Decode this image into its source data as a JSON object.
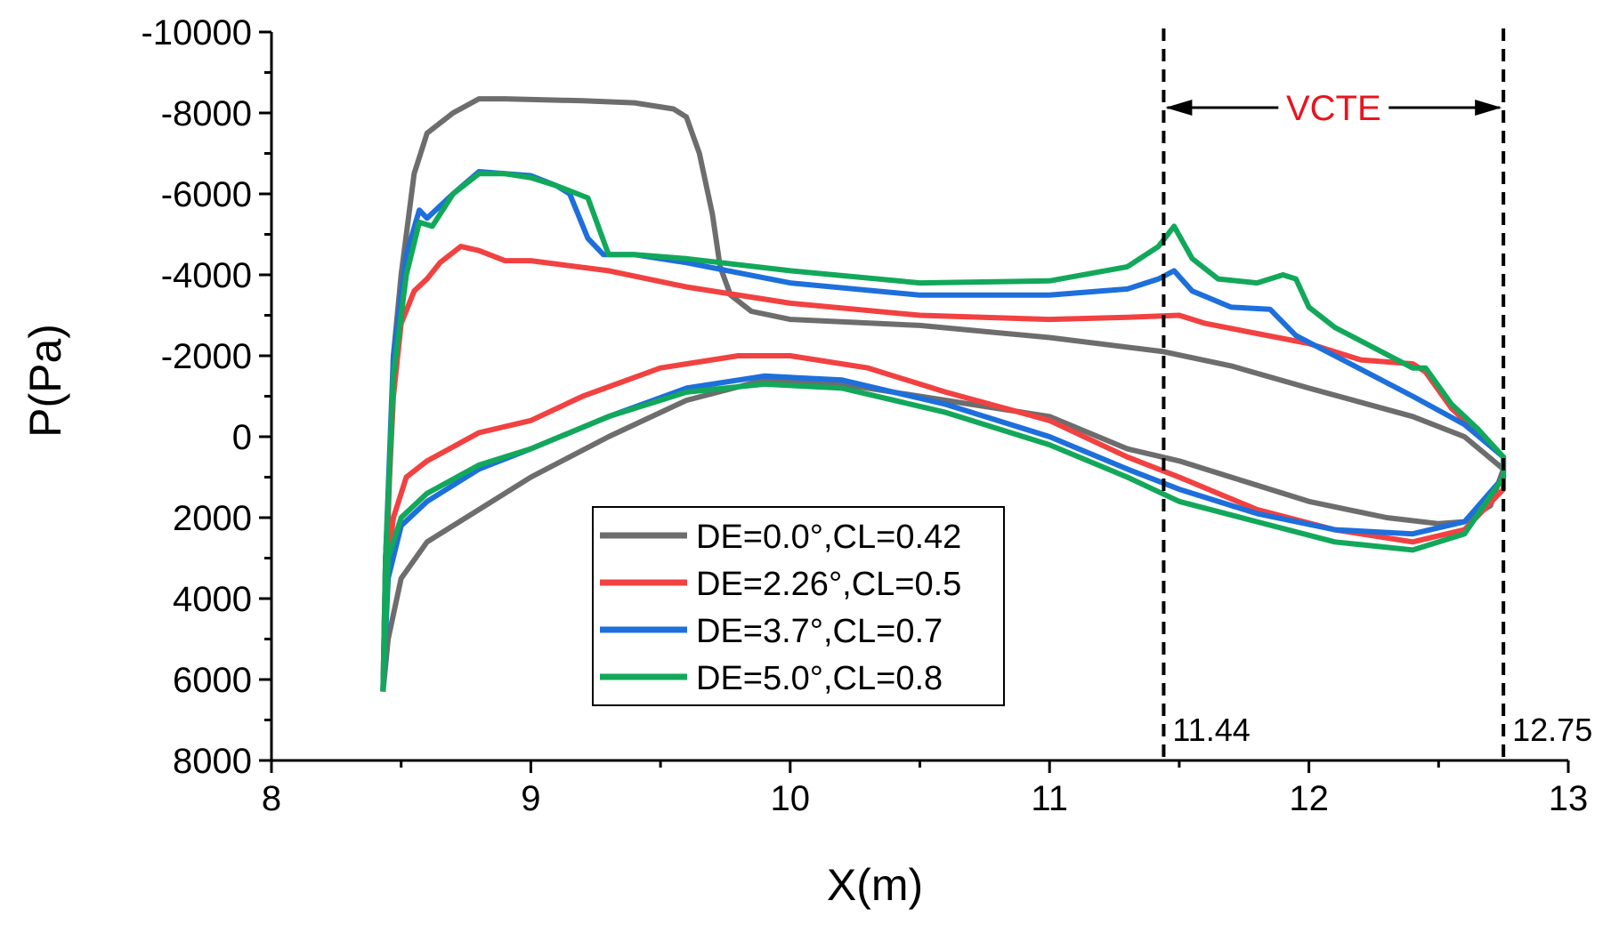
{
  "chart_data": {
    "type": "line",
    "title": "",
    "xlabel": "X(m)",
    "ylabel": "P(Pa)",
    "xlim": [
      8,
      13
    ],
    "ylim": [
      -10000,
      8000
    ],
    "y_inverted": true,
    "xticks": [
      8,
      9,
      10,
      11,
      12,
      13
    ],
    "xtick_labels": [
      "8",
      "9",
      "10",
      "11",
      "12",
      "13"
    ],
    "yticks": [
      -10000,
      -8000,
      -6000,
      -4000,
      -2000,
      0,
      2000,
      4000,
      6000,
      8000
    ],
    "ytick_labels": [
      "-10000",
      "-8000",
      "-6000",
      "-4000",
      "-2000",
      "0",
      "2000",
      "4000",
      "6000",
      "8000"
    ],
    "grid": false,
    "legend_position": "bottom-center",
    "colors": {
      "gray": "#6d6d6d",
      "red": "#f24141",
      "blue": "#1d6fdc",
      "green": "#12a85a",
      "annotation_text": "#e8141e"
    },
    "annotations": {
      "vlines": [
        11.44,
        12.75
      ],
      "vline_labels": [
        "11.44",
        "12.75"
      ],
      "range_label": "VCTE"
    },
    "series": [
      {
        "name": "DE=0.0°,CL=0.42",
        "color": "#6d6d6d",
        "upper": [
          [
            8.43,
            6300
          ],
          [
            8.45,
            2000
          ],
          [
            8.47,
            -2000
          ],
          [
            8.5,
            -4000
          ],
          [
            8.55,
            -6500
          ],
          [
            8.6,
            -7500
          ],
          [
            8.7,
            -8000
          ],
          [
            8.8,
            -8350
          ],
          [
            8.9,
            -8350
          ],
          [
            9.2,
            -8300
          ],
          [
            9.4,
            -8250
          ],
          [
            9.55,
            -8100
          ],
          [
            9.6,
            -7900
          ],
          [
            9.65,
            -7000
          ],
          [
            9.7,
            -5500
          ],
          [
            9.73,
            -4200
          ],
          [
            9.77,
            -3500
          ],
          [
            9.85,
            -3100
          ],
          [
            10.0,
            -2900
          ],
          [
            10.5,
            -2750
          ],
          [
            11.0,
            -2450
          ],
          [
            11.44,
            -2100
          ],
          [
            11.7,
            -1750
          ],
          [
            12.0,
            -1200
          ],
          [
            12.4,
            -500
          ],
          [
            12.6,
            0
          ],
          [
            12.75,
            800
          ]
        ],
        "lower": [
          [
            8.43,
            6300
          ],
          [
            8.45,
            5000
          ],
          [
            8.5,
            3500
          ],
          [
            8.6,
            2600
          ],
          [
            8.8,
            1800
          ],
          [
            9.0,
            1000
          ],
          [
            9.3,
            0
          ],
          [
            9.6,
            -900
          ],
          [
            9.9,
            -1400
          ],
          [
            10.2,
            -1300
          ],
          [
            10.6,
            -900
          ],
          [
            11.0,
            -500
          ],
          [
            11.3,
            300
          ],
          [
            11.5,
            600
          ],
          [
            11.7,
            1000
          ],
          [
            12.0,
            1600
          ],
          [
            12.3,
            2000
          ],
          [
            12.5,
            2150
          ],
          [
            12.6,
            2100
          ],
          [
            12.7,
            1700
          ],
          [
            12.75,
            800
          ]
        ]
      },
      {
        "name": "DE=2.26°,CL=0.5",
        "color": "#f24141",
        "upper": [
          [
            8.43,
            6300
          ],
          [
            8.44,
            3000
          ],
          [
            8.47,
            -1000
          ],
          [
            8.5,
            -2800
          ],
          [
            8.55,
            -3600
          ],
          [
            8.6,
            -3900
          ],
          [
            8.65,
            -4300
          ],
          [
            8.73,
            -4700
          ],
          [
            8.8,
            -4600
          ],
          [
            8.9,
            -4350
          ],
          [
            9.0,
            -4350
          ],
          [
            9.3,
            -4100
          ],
          [
            9.6,
            -3700
          ],
          [
            10.0,
            -3300
          ],
          [
            10.5,
            -3000
          ],
          [
            11.0,
            -2900
          ],
          [
            11.3,
            -2950
          ],
          [
            11.5,
            -3000
          ],
          [
            11.6,
            -2800
          ],
          [
            11.8,
            -2550
          ],
          [
            12.0,
            -2300
          ],
          [
            12.2,
            -1900
          ],
          [
            12.4,
            -1800
          ],
          [
            12.45,
            -1600
          ],
          [
            12.55,
            -700
          ],
          [
            12.65,
            -100
          ],
          [
            12.75,
            500
          ]
        ],
        "lower": [
          [
            8.43,
            6300
          ],
          [
            8.44,
            3500
          ],
          [
            8.47,
            2000
          ],
          [
            8.52,
            1000
          ],
          [
            8.6,
            600
          ],
          [
            8.8,
            -100
          ],
          [
            9.0,
            -400
          ],
          [
            9.2,
            -1000
          ],
          [
            9.5,
            -1700
          ],
          [
            9.8,
            -2000
          ],
          [
            10.0,
            -2000
          ],
          [
            10.3,
            -1700
          ],
          [
            10.6,
            -1100
          ],
          [
            11.0,
            -400
          ],
          [
            11.3,
            500
          ],
          [
            11.5,
            1000
          ],
          [
            11.8,
            1800
          ],
          [
            12.1,
            2300
          ],
          [
            12.4,
            2600
          ],
          [
            12.6,
            2300
          ],
          [
            12.75,
            1300
          ]
        ]
      },
      {
        "name": "DE=3.7°,CL=0.7",
        "color": "#1d6fdc",
        "upper": [
          [
            8.43,
            6300
          ],
          [
            8.44,
            3000
          ],
          [
            8.47,
            -2000
          ],
          [
            8.52,
            -4500
          ],
          [
            8.57,
            -5600
          ],
          [
            8.6,
            -5400
          ],
          [
            8.7,
            -6000
          ],
          [
            8.8,
            -6550
          ],
          [
            8.9,
            -6500
          ],
          [
            9.0,
            -6450
          ],
          [
            9.1,
            -6200
          ],
          [
            9.15,
            -6000
          ],
          [
            9.22,
            -4900
          ],
          [
            9.28,
            -4500
          ],
          [
            9.4,
            -4500
          ],
          [
            9.6,
            -4300
          ],
          [
            10.0,
            -3800
          ],
          [
            10.5,
            -3500
          ],
          [
            11.0,
            -3500
          ],
          [
            11.3,
            -3650
          ],
          [
            11.42,
            -3900
          ],
          [
            11.48,
            -4100
          ],
          [
            11.55,
            -3600
          ],
          [
            11.7,
            -3200
          ],
          [
            11.85,
            -3150
          ],
          [
            11.95,
            -2500
          ],
          [
            12.1,
            -2000
          ],
          [
            12.4,
            -1000
          ],
          [
            12.6,
            -300
          ],
          [
            12.75,
            500
          ]
        ],
        "lower": [
          [
            8.43,
            6300
          ],
          [
            8.45,
            3500
          ],
          [
            8.5,
            2200
          ],
          [
            8.6,
            1600
          ],
          [
            8.8,
            800
          ],
          [
            9.0,
            300
          ],
          [
            9.3,
            -500
          ],
          [
            9.6,
            -1200
          ],
          [
            9.9,
            -1500
          ],
          [
            10.2,
            -1400
          ],
          [
            10.6,
            -800
          ],
          [
            11.0,
            0
          ],
          [
            11.3,
            800
          ],
          [
            11.5,
            1300
          ],
          [
            11.8,
            1900
          ],
          [
            12.1,
            2300
          ],
          [
            12.4,
            2400
          ],
          [
            12.6,
            2100
          ],
          [
            12.75,
            1000
          ]
        ]
      },
      {
        "name": "DE=5.0°,CL=0.8",
        "color": "#12a85a",
        "upper": [
          [
            8.43,
            6300
          ],
          [
            8.44,
            3000
          ],
          [
            8.47,
            -1500
          ],
          [
            8.52,
            -4000
          ],
          [
            8.57,
            -5300
          ],
          [
            8.62,
            -5200
          ],
          [
            8.7,
            -6000
          ],
          [
            8.8,
            -6500
          ],
          [
            8.9,
            -6500
          ],
          [
            9.0,
            -6400
          ],
          [
            9.1,
            -6200
          ],
          [
            9.22,
            -5900
          ],
          [
            9.3,
            -4500
          ],
          [
            9.4,
            -4500
          ],
          [
            9.6,
            -4400
          ],
          [
            10.0,
            -4100
          ],
          [
            10.5,
            -3800
          ],
          [
            11.0,
            -3850
          ],
          [
            11.3,
            -4200
          ],
          [
            11.42,
            -4700
          ],
          [
            11.48,
            -5200
          ],
          [
            11.55,
            -4400
          ],
          [
            11.65,
            -3900
          ],
          [
            11.8,
            -3800
          ],
          [
            11.9,
            -4000
          ],
          [
            11.95,
            -3900
          ],
          [
            12.0,
            -3200
          ],
          [
            12.1,
            -2700
          ],
          [
            12.4,
            -1700
          ],
          [
            12.45,
            -1700
          ],
          [
            12.55,
            -800
          ],
          [
            12.65,
            -200
          ],
          [
            12.75,
            500
          ]
        ],
        "lower": [
          [
            8.43,
            6300
          ],
          [
            8.45,
            3000
          ],
          [
            8.5,
            2000
          ],
          [
            8.6,
            1400
          ],
          [
            8.8,
            700
          ],
          [
            9.0,
            300
          ],
          [
            9.3,
            -500
          ],
          [
            9.6,
            -1100
          ],
          [
            9.9,
            -1300
          ],
          [
            10.2,
            -1200
          ],
          [
            10.6,
            -600
          ],
          [
            11.0,
            200
          ],
          [
            11.3,
            1000
          ],
          [
            11.5,
            1600
          ],
          [
            11.8,
            2100
          ],
          [
            12.1,
            2600
          ],
          [
            12.4,
            2800
          ],
          [
            12.6,
            2400
          ],
          [
            12.75,
            1000
          ]
        ]
      }
    ]
  }
}
